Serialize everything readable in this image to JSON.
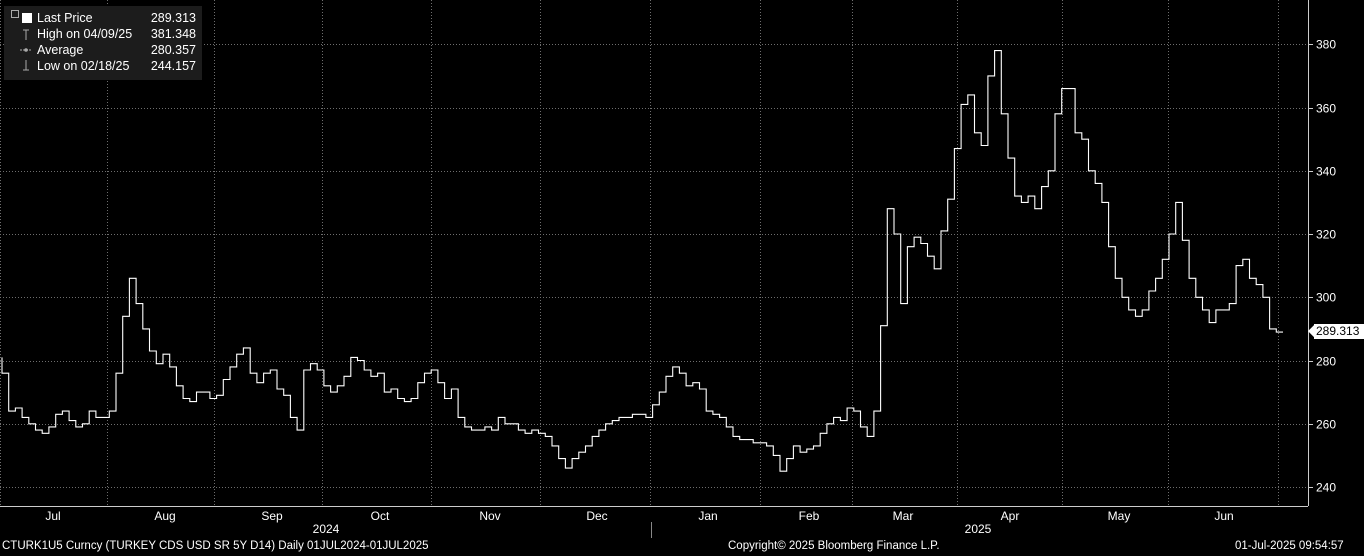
{
  "legend": {
    "last_price_label": "Last Price",
    "last_price_value": "289.313",
    "high_label": "High on 04/09/25",
    "high_value": "381.348",
    "average_label": "Average",
    "average_value": "280.357",
    "low_label": "Low on 02/18/25",
    "low_value": "244.157"
  },
  "last_price_tag": "289.313",
  "footer": {
    "ticker": "CTURK1U5 Curncy (TURKEY CDS USD SR 5Y D14)  Daily 01JUL2024-01JUL2025",
    "copyright": "Copyright© 2025 Bloomberg Finance L.P.",
    "timestamp": "01-Jul-2025 09:54:57"
  },
  "colors": {
    "background": "#000000",
    "line": "#ffffff",
    "grid": "#6e6e6e"
  },
  "chart_data": {
    "type": "line",
    "title": "",
    "xlabel": "",
    "ylabel": "",
    "ylim": [
      234,
      394
    ],
    "yticks": [
      240,
      260,
      280,
      300,
      320,
      340,
      360,
      380
    ],
    "months": [
      "Jul",
      "Aug",
      "Sep",
      "Oct",
      "Nov",
      "Dec",
      "Jan",
      "Feb",
      "Mar",
      "Apr",
      "May",
      "Jun"
    ],
    "years": [
      "2024",
      "2025"
    ],
    "grid": true,
    "legend_position": "top-left",
    "series": [
      {
        "name": "Last Price",
        "values": [
          281,
          276,
          264,
          265,
          262,
          260,
          258,
          257,
          259,
          263,
          264,
          261,
          259,
          260,
          264,
          262,
          262,
          264,
          276,
          294,
          306,
          298,
          290,
          283,
          279,
          282,
          278,
          272,
          268,
          267,
          270,
          270,
          268,
          269,
          274,
          278,
          282,
          284,
          276,
          273,
          276,
          277,
          271,
          269,
          262,
          258,
          277,
          279,
          277,
          272,
          270,
          272,
          275,
          281,
          280,
          277,
          275,
          276,
          270,
          271,
          268,
          267,
          268,
          273,
          276,
          277,
          273,
          268,
          271,
          262,
          259,
          258,
          258,
          259,
          258,
          262,
          260,
          260,
          258,
          257,
          258,
          257,
          256,
          253,
          249,
          246,
          249,
          251,
          253,
          256,
          258,
          260,
          261,
          262,
          262,
          263,
          263,
          262,
          266,
          270,
          275,
          278,
          276,
          272,
          273,
          271,
          264,
          263,
          262,
          259,
          256,
          255,
          255,
          254,
          254,
          253,
          250,
          245,
          249,
          253,
          251,
          252,
          253,
          257,
          260,
          262,
          261,
          265,
          264,
          259,
          256,
          264,
          291,
          328,
          320,
          298,
          316,
          319,
          317,
          313,
          309,
          321,
          331,
          347,
          361,
          364,
          352,
          348,
          370,
          378,
          358,
          344,
          332,
          330,
          332,
          328,
          335,
          340,
          358,
          366,
          366,
          352,
          350,
          340,
          336,
          330,
          316,
          306,
          300,
          296,
          294,
          296,
          302,
          306,
          312,
          320,
          330,
          318,
          306,
          300,
          296,
          292,
          296,
          296,
          298,
          310,
          312,
          306,
          304,
          300,
          290,
          289
        ]
      }
    ],
    "annotations": {
      "high": {
        "date": "04/09/25",
        "value": 381.348
      },
      "average": 280.357,
      "low": {
        "date": "02/18/25",
        "value": 244.157
      },
      "last": 289.313
    }
  }
}
